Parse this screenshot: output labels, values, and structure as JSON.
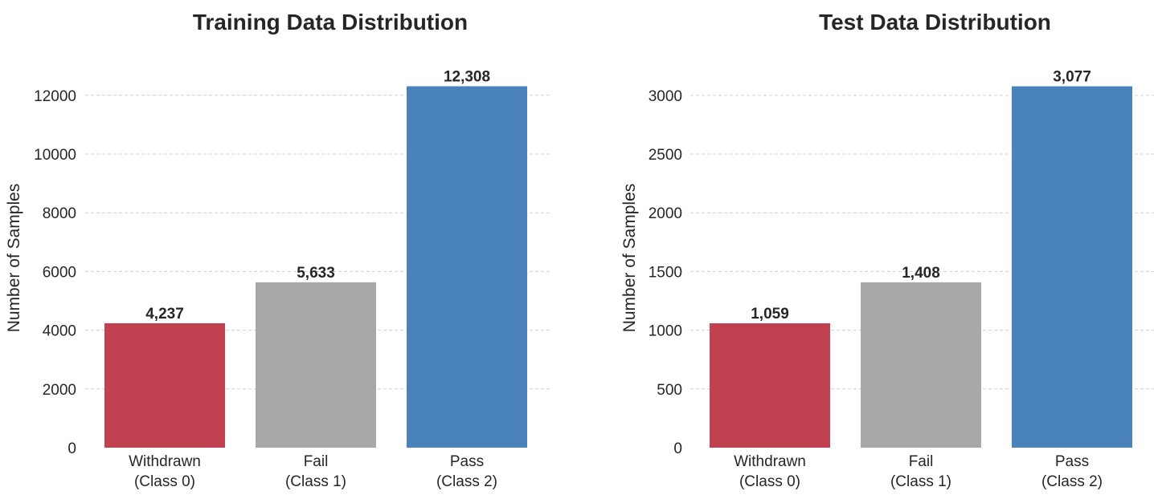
{
  "chart_data": [
    {
      "type": "bar",
      "title": "Training Data Distribution",
      "xlabel": "",
      "ylabel": "Number of Samples",
      "categories": [
        [
          "Withdrawn",
          "(Class 0)"
        ],
        [
          "Fail",
          "(Class 1)"
        ],
        [
          "Pass",
          "(Class 2)"
        ]
      ],
      "values": [
        4237,
        5633,
        12308
      ],
      "value_labels": [
        "4,237",
        "5,633",
        "12,308"
      ],
      "colors": [
        "#c0414f",
        "#a8a8a8",
        "#4a82bb"
      ],
      "yticks": [
        0,
        2000,
        4000,
        6000,
        8000,
        10000,
        12000
      ],
      "ylim": [
        0,
        12923
      ],
      "grid": "horizontal-dashed",
      "legend": "none"
    },
    {
      "type": "bar",
      "title": "Test Data Distribution",
      "xlabel": "",
      "ylabel": "Number of Samples",
      "categories": [
        [
          "Withdrawn",
          "(Class 0)"
        ],
        [
          "Fail",
          "(Class 1)"
        ],
        [
          "Pass",
          "(Class 2)"
        ]
      ],
      "values": [
        1059,
        1408,
        3077
      ],
      "value_labels": [
        "1,059",
        "1,408",
        "3,077"
      ],
      "colors": [
        "#c0414f",
        "#a8a8a8",
        "#4a82bb"
      ],
      "yticks": [
        0,
        500,
        1000,
        1500,
        2000,
        2500,
        3000
      ],
      "ylim": [
        0,
        3231
      ],
      "grid": "horizontal-dashed",
      "legend": "none"
    }
  ]
}
